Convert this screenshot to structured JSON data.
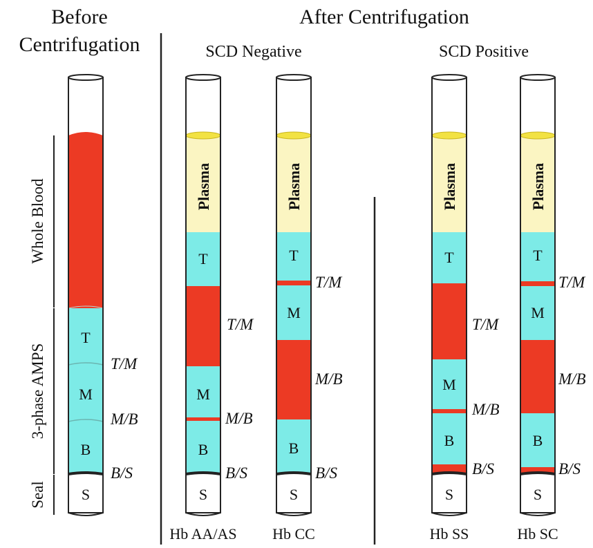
{
  "headers": {
    "before_line1": "Before",
    "before_line2": "Centrifugation",
    "after": "After Centrifugation",
    "scd_negative": "SCD Negative",
    "scd_positive": "SCD Positive"
  },
  "side_labels": {
    "whole_blood": "Whole Blood",
    "amps": "3-phase AMPS",
    "seal": "Seal"
  },
  "band_labels": {
    "plasma": "Plasma",
    "top": "T",
    "middle": "M",
    "bottom": "B",
    "seal": "S"
  },
  "interface_labels": {
    "tm": "T/M",
    "mb": "M/B",
    "bs": "B/S"
  },
  "tube_labels": {
    "aa_as": "Hb AA/AS",
    "cc": "Hb CC",
    "ss": "Hb SS",
    "sc": "Hb SC"
  },
  "colors": {
    "red": "#ec3a24",
    "cyan": "#7debe7",
    "plasma": "#fbf5c2",
    "meniscus": "#f2e243",
    "outline": "#222222"
  }
}
